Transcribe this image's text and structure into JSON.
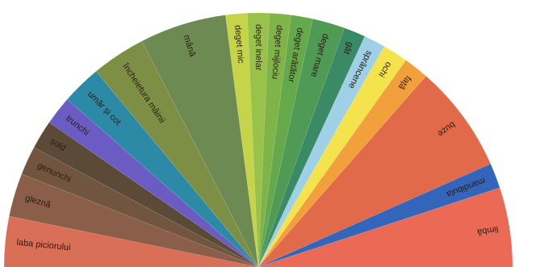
{
  "diagram": {
    "sectors": [
      {
        "id": "laba-piciorului",
        "label": "laba piciorului",
        "weight": 7.0,
        "color": "#d86f56"
      },
      {
        "id": "glezna",
        "label": "gleznă",
        "weight": 6.0,
        "color": "#8a5e48"
      },
      {
        "id": "genunchi",
        "label": "genunchi",
        "weight": 4.0,
        "color": "#72553f"
      },
      {
        "id": "sold",
        "label": "șold",
        "weight": 4.0,
        "color": "#5c4a38"
      },
      {
        "id": "trunchi",
        "label": "trunchi",
        "weight": 4.0,
        "color": "#6a5cc2"
      },
      {
        "id": "umar-si-cot",
        "label": "umăr și cot",
        "weight": 5.5,
        "color": "#2c8aa6"
      },
      {
        "id": "incheietura-mainii",
        "label": "încheietura mâinii",
        "weight": 7.5,
        "color": "#7d8f45"
      },
      {
        "id": "mana",
        "label": "mână",
        "weight": 12.0,
        "color": "#6d8a52"
      },
      {
        "id": "deget-mic",
        "label": "deget mic",
        "weight": 3.0,
        "color": "#c6d44a"
      },
      {
        "id": "deget-inelar",
        "label": "deget inelar",
        "weight": 3.0,
        "color": "#98c24a"
      },
      {
        "id": "deget-mijlociu",
        "label": "deget mijlociu",
        "weight": 3.0,
        "color": "#7fb548"
      },
      {
        "id": "deget-aratator",
        "label": "deget arătător",
        "weight": 3.0,
        "color": "#66a84c"
      },
      {
        "id": "deget-mare",
        "label": "deget mare",
        "weight": 4.5,
        "color": "#4f9a55"
      },
      {
        "id": "gat",
        "label": "gât",
        "weight": 3.0,
        "color": "#3a8a66"
      },
      {
        "id": "sprancene",
        "label": "sprâncene",
        "weight": 3.0,
        "color": "#9fd0e6"
      },
      {
        "id": "ochi",
        "label": "ochi",
        "weight": 3.5,
        "color": "#f4e34c"
      },
      {
        "id": "fata",
        "label": "față",
        "weight": 3.5,
        "color": "#f2a03c"
      },
      {
        "id": "buze",
        "label": "buze",
        "weight": 15.0,
        "color": "#e06a4a"
      },
      {
        "id": "mandibula",
        "label": "mandibula",
        "weight": 3.5,
        "color": "#3366bb"
      },
      {
        "id": "limba",
        "label": "limbă",
        "weight": 11.0,
        "color": "#ea6a55"
      }
    ]
  }
}
